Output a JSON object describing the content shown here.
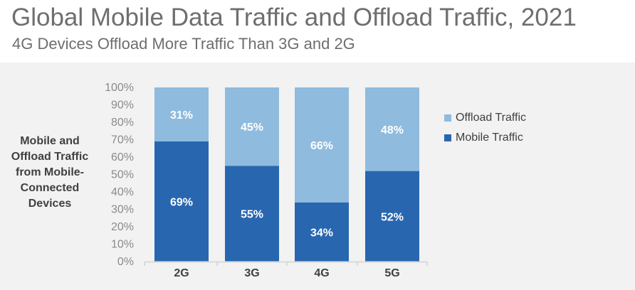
{
  "header": {
    "title": "Global Mobile Data Traffic and Offload Traffic, 2021",
    "subtitle": "4G Devices Offload More Traffic Than 3G and 2G"
  },
  "colors": {
    "mobile": "#2866b0",
    "offload": "#8fbbde",
    "text": "#404040",
    "axis": "#d9d9d9"
  },
  "chart_data": {
    "type": "bar",
    "stacked": true,
    "title": "Global Mobile Data Traffic and Offload Traffic, 2021",
    "subtitle": "4G Devices Offload More Traffic Than 3G and 2G",
    "xlabel": "",
    "ylabel": "Mobile and Offload Traffic from Mobile-Connected Devices",
    "ylim": [
      0,
      100
    ],
    "yticks": [
      "0%",
      "10%",
      "20%",
      "30%",
      "40%",
      "50%",
      "60%",
      "70%",
      "80%",
      "90%",
      "100%"
    ],
    "categories": [
      "2G",
      "3G",
      "4G",
      "5G"
    ],
    "series": [
      {
        "name": "Mobile Traffic",
        "values": [
          69,
          55,
          34,
          52
        ],
        "labels": [
          "69%",
          "55%",
          "34%",
          "52%"
        ]
      },
      {
        "name": "Offload Traffic",
        "values": [
          31,
          45,
          66,
          48
        ],
        "labels": [
          "31%",
          "45%",
          "66%",
          "48%"
        ]
      }
    ],
    "legend": [
      "Offload Traffic",
      "Mobile Traffic"
    ],
    "legend_position": "right"
  }
}
